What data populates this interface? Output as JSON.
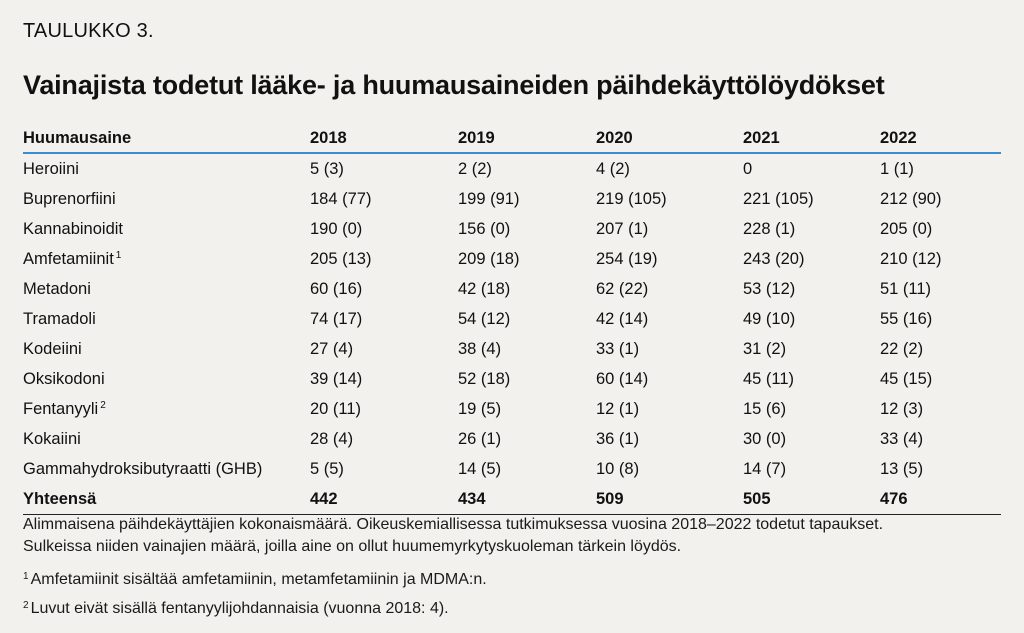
{
  "table_label": "TAULUKKO 3.",
  "title": "Vainajista todetut lääke- ja huumausaineiden päihdekäyttölöydökset",
  "columns": [
    "Huumausaine",
    "2018",
    "2019",
    "2020",
    "2021",
    "2022"
  ],
  "rows": [
    {
      "name": "Heroiini",
      "sup": "",
      "values": [
        "5 (3)",
        "2 (2)",
        "4 (2)",
        "0",
        "1 (1)"
      ]
    },
    {
      "name": "Buprenorfiini",
      "sup": "",
      "values": [
        "184 (77)",
        "199 (91)",
        "219 (105)",
        "221 (105)",
        "212 (90)"
      ]
    },
    {
      "name": "Kannabinoidit",
      "sup": "",
      "values": [
        "190 (0)",
        "156 (0)",
        "207 (1)",
        "228 (1)",
        "205 (0)"
      ]
    },
    {
      "name": "Amfetamiinit",
      "sup": "1",
      "values": [
        "205 (13)",
        "209 (18)",
        "254 (19)",
        "243 (20)",
        "210 (12)"
      ]
    },
    {
      "name": "Metadoni",
      "sup": "",
      "values": [
        "60 (16)",
        "42 (18)",
        "62 (22)",
        "53 (12)",
        "51 (11)"
      ]
    },
    {
      "name": "Tramadoli",
      "sup": "",
      "values": [
        "74 (17)",
        "54 (12)",
        "42 (14)",
        "49 (10)",
        "55 (16)"
      ]
    },
    {
      "name": "Kodeiini",
      "sup": "",
      "values": [
        "27 (4)",
        "38 (4)",
        "33 (1)",
        "31 (2)",
        "22 (2)"
      ]
    },
    {
      "name": "Oksikodoni",
      "sup": "",
      "values": [
        "39 (14)",
        "52 (18)",
        "60 (14)",
        "45 (11)",
        "45 (15)"
      ]
    },
    {
      "name": "Fentanyyli",
      "sup": "2",
      "values": [
        "20 (11)",
        "19 (5)",
        "12 (1)",
        "15 (6)",
        "12 (3)"
      ]
    },
    {
      "name": "Kokaiini",
      "sup": "",
      "values": [
        "28 (4)",
        "26 (1)",
        "36 (1)",
        "30 (0)",
        "33 (4)"
      ]
    },
    {
      "name": "Gammahydroksibutyraatti (GHB)",
      "sup": "",
      "values": [
        "5 (5)",
        "14 (5)",
        "10 (8)",
        "14 (7)",
        "13 (5)"
      ]
    }
  ],
  "total": {
    "name": "Yhteensä",
    "values": [
      "442",
      "434",
      "509",
      "505",
      "476"
    ]
  },
  "notes": {
    "line1": "Alimmaisena päihdekäyttäjien kokonaismäärä. Oikeuskemiallisessa tutkimuksessa vuosina 2018–2022 todetut tapaukset.",
    "line2": "Sulkeissa niiden vainajien määrä, joilla aine on ollut huumemyrkytyskuoleman tärkein löydös.",
    "fn1_mark": "1",
    "fn1": "Amfetamiinit sisältää amfetamiinin, metamfetamiinin ja MDMA:n.",
    "fn2_mark": "2",
    "fn2": "Luvut eivät sisällä fentanyylijohdannaisia (vuonna 2018: 4)."
  },
  "colors": {
    "background": "#f2f1ed",
    "header_rule": "#3d8ccf",
    "text": "#111111"
  }
}
